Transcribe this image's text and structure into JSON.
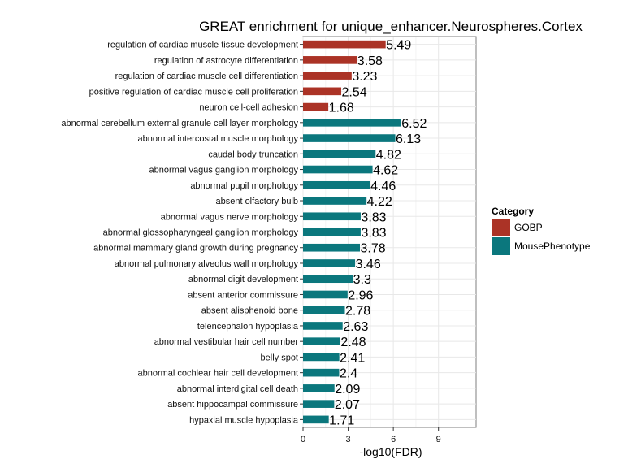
{
  "chart_data": {
    "type": "bar",
    "orientation": "horizontal",
    "title": "GREAT enrichment for unique_enhancer.Neurospheres.Cortex",
    "xlabel": "-log10(FDR)",
    "ylabel": "",
    "xlim": [
      0,
      11.5
    ],
    "xticks": [
      0,
      3,
      6,
      9
    ],
    "grid": true,
    "legend": {
      "title": "Category",
      "position": "right",
      "entries": [
        {
          "name": "GOBP",
          "color": "#ab3326"
        },
        {
          "name": "MousePhenotype",
          "color": "#0b777d"
        }
      ]
    },
    "bars": [
      {
        "label": "regulation of cardiac muscle tissue development",
        "value": 5.49,
        "value_label": "5.49",
        "category": "GOBP"
      },
      {
        "label": "regulation of astrocyte differentiation",
        "value": 3.58,
        "value_label": "3.58",
        "category": "GOBP"
      },
      {
        "label": "regulation of cardiac muscle cell differentiation",
        "value": 3.23,
        "value_label": "3.23",
        "category": "GOBP"
      },
      {
        "label": "positive regulation of cardiac muscle cell proliferation",
        "value": 2.54,
        "value_label": "2.54",
        "category": "GOBP"
      },
      {
        "label": "neuron cell-cell adhesion",
        "value": 1.68,
        "value_label": "1.68",
        "category": "GOBP"
      },
      {
        "label": "abnormal cerebellum external granule cell layer morphology",
        "value": 6.52,
        "value_label": "6.52",
        "category": "MousePhenotype"
      },
      {
        "label": "abnormal intercostal muscle morphology",
        "value": 6.13,
        "value_label": "6.13",
        "category": "MousePhenotype"
      },
      {
        "label": "caudal body truncation",
        "value": 4.82,
        "value_label": "4.82",
        "category": "MousePhenotype"
      },
      {
        "label": "abnormal vagus ganglion morphology",
        "value": 4.62,
        "value_label": "4.62",
        "category": "MousePhenotype"
      },
      {
        "label": "abnormal pupil morphology",
        "value": 4.46,
        "value_label": "4.46",
        "category": "MousePhenotype"
      },
      {
        "label": "absent olfactory bulb",
        "value": 4.22,
        "value_label": "4.22",
        "category": "MousePhenotype"
      },
      {
        "label": "abnormal vagus nerve morphology",
        "value": 3.83,
        "value_label": "3.83",
        "category": "MousePhenotype"
      },
      {
        "label": "abnormal glossopharyngeal ganglion morphology",
        "value": 3.83,
        "value_label": "3.83",
        "category": "MousePhenotype"
      },
      {
        "label": "abnormal mammary gland growth during pregnancy",
        "value": 3.78,
        "value_label": "3.78",
        "category": "MousePhenotype"
      },
      {
        "label": "abnormal pulmonary alveolus wall morphology",
        "value": 3.46,
        "value_label": "3.46",
        "category": "MousePhenotype"
      },
      {
        "label": "abnormal digit development",
        "value": 3.3,
        "value_label": "3.3",
        "category": "MousePhenotype"
      },
      {
        "label": "absent anterior commissure",
        "value": 2.96,
        "value_label": "2.96",
        "category": "MousePhenotype"
      },
      {
        "label": "absent alisphenoid bone",
        "value": 2.78,
        "value_label": "2.78",
        "category": "MousePhenotype"
      },
      {
        "label": "telencephalon hypoplasia",
        "value": 2.63,
        "value_label": "2.63",
        "category": "MousePhenotype"
      },
      {
        "label": "abnormal vestibular hair cell number",
        "value": 2.48,
        "value_label": "2.48",
        "category": "MousePhenotype"
      },
      {
        "label": "belly spot",
        "value": 2.41,
        "value_label": "2.41",
        "category": "MousePhenotype"
      },
      {
        "label": "abnormal cochlear hair cell development",
        "value": 2.4,
        "value_label": "2.4",
        "category": "MousePhenotype"
      },
      {
        "label": "abnormal interdigital cell death",
        "value": 2.09,
        "value_label": "2.09",
        "category": "MousePhenotype"
      },
      {
        "label": "absent hippocampal commissure",
        "value": 2.07,
        "value_label": "2.07",
        "category": "MousePhenotype"
      },
      {
        "label": "hypaxial muscle hypoplasia",
        "value": 1.71,
        "value_label": "1.71",
        "category": "MousePhenotype"
      }
    ]
  }
}
